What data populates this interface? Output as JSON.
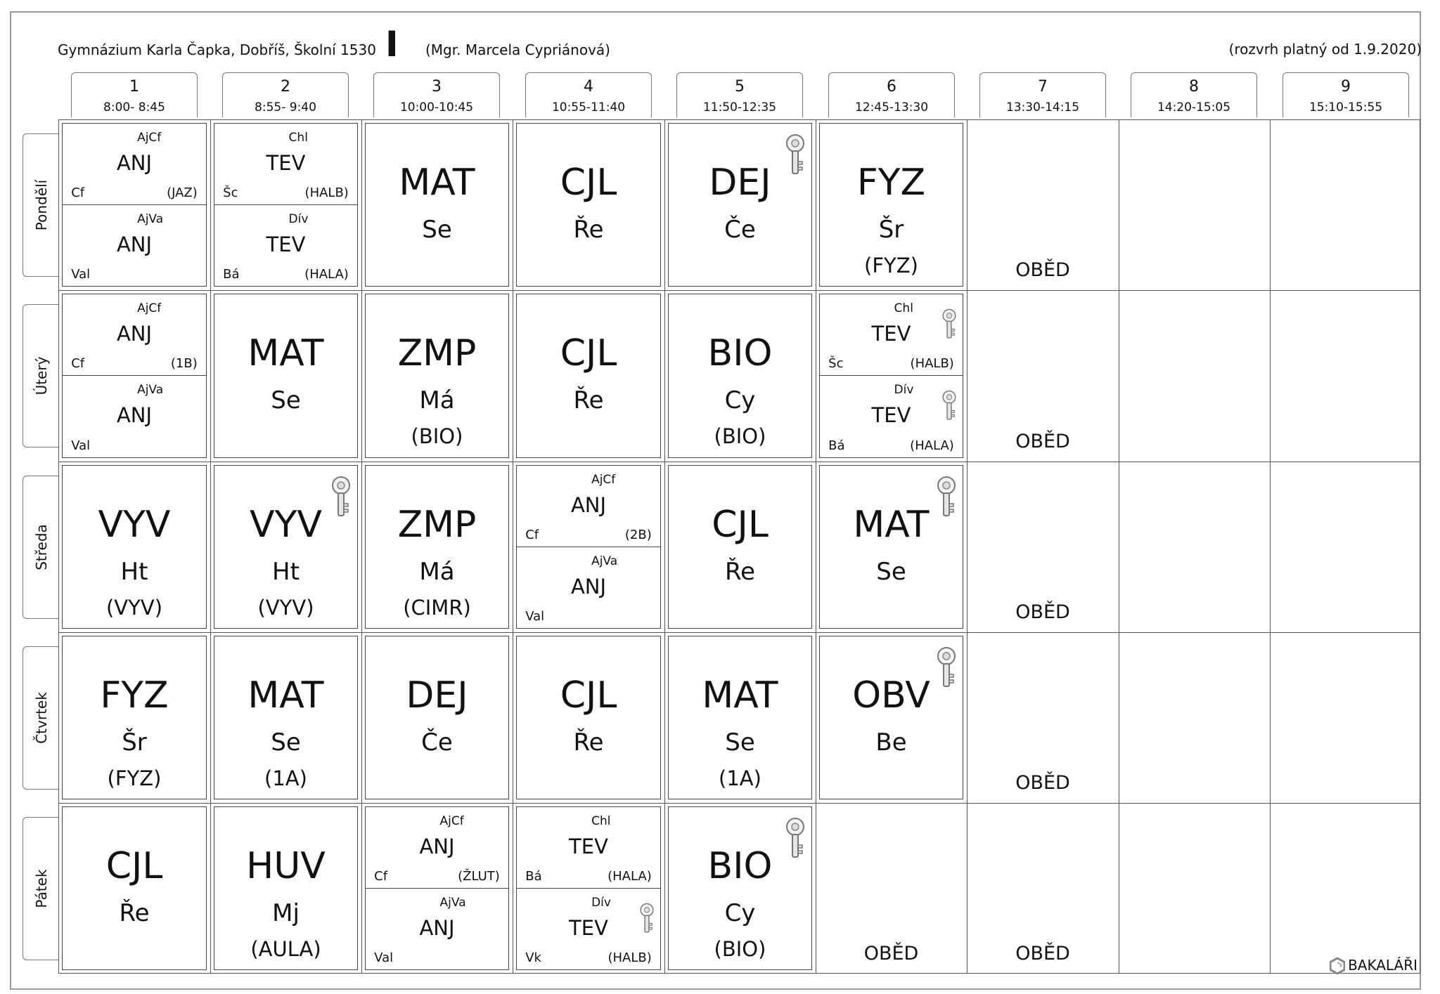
{
  "header": {
    "school": "Gymnázium Karla Čapka, Dobříš, Školní 1530",
    "class_label": "I",
    "teacher": "(Mgr. Marcela Cypriánová)",
    "validity": "(rozvrh platný od 1.9.2020)"
  },
  "periods": [
    {
      "num": "1",
      "time": "8:00- 8:45"
    },
    {
      "num": "2",
      "time": "8:55- 9:40"
    },
    {
      "num": "3",
      "time": "10:00-10:45"
    },
    {
      "num": "4",
      "time": "10:55-11:40"
    },
    {
      "num": "5",
      "time": "11:50-12:35"
    },
    {
      "num": "6",
      "time": "12:45-13:30"
    },
    {
      "num": "7",
      "time": "13:30-14:15"
    },
    {
      "num": "8",
      "time": "14:20-15:05"
    },
    {
      "num": "9",
      "time": "15:10-15:55"
    }
  ],
  "days": [
    "Pondělí",
    "Úterý",
    "Středa",
    "Čtvrtek",
    "Pátek"
  ],
  "lunch_label": "OBĚD",
  "brand": "BAKALÁŘI",
  "icons": {
    "key": "key-icon",
    "brand": "bakalari-logo-icon"
  },
  "schedule": [
    [
      {
        "type": "split",
        "top": {
          "group": "AjCf",
          "subject": "ANJ",
          "teacher": "Cf",
          "room": "(JAZ)"
        },
        "bottom": {
          "group": "AjVa",
          "subject": "ANJ",
          "teacher": "Val",
          "room": ""
        }
      },
      {
        "type": "split",
        "top": {
          "group": "Chl",
          "subject": "TEV",
          "teacher": "Šc",
          "room": "(HALB)"
        },
        "bottom": {
          "group": "Dív",
          "subject": "TEV",
          "teacher": "Bá",
          "room": "(HALA)"
        }
      },
      {
        "type": "full",
        "subject": "MAT",
        "teacher": "Se",
        "room": ""
      },
      {
        "type": "full",
        "subject": "CJL",
        "teacher": "Ře",
        "room": ""
      },
      {
        "type": "full",
        "subject": "DEJ",
        "teacher": "Če",
        "room": "",
        "key": true
      },
      {
        "type": "full",
        "subject": "FYZ",
        "teacher": "Šr",
        "room": "(FYZ)"
      }
    ],
    [
      {
        "type": "split",
        "top": {
          "group": "AjCf",
          "subject": "ANJ",
          "teacher": "Cf",
          "room": "(1B)"
        },
        "bottom": {
          "group": "AjVa",
          "subject": "ANJ",
          "teacher": "Val",
          "room": ""
        }
      },
      {
        "type": "full",
        "subject": "MAT",
        "teacher": "Se",
        "room": ""
      },
      {
        "type": "full",
        "subject": "ZMP",
        "teacher": "Má",
        "room": "(BIO)"
      },
      {
        "type": "full",
        "subject": "CJL",
        "teacher": "Ře",
        "room": ""
      },
      {
        "type": "full",
        "subject": "BIO",
        "teacher": "Cy",
        "room": "(BIO)"
      },
      {
        "type": "split",
        "top": {
          "group": "Chl",
          "subject": "TEV",
          "teacher": "Šc",
          "room": "(HALB)",
          "key": true
        },
        "bottom": {
          "group": "Dív",
          "subject": "TEV",
          "teacher": "Bá",
          "room": "(HALA)",
          "key": true
        }
      }
    ],
    [
      {
        "type": "full",
        "subject": "VYV",
        "teacher": "Ht",
        "room": "(VYV)"
      },
      {
        "type": "full",
        "subject": "VYV",
        "teacher": "Ht",
        "room": "(VYV)",
        "key": true
      },
      {
        "type": "full",
        "subject": "ZMP",
        "teacher": "Má",
        "room": "(CIMR)"
      },
      {
        "type": "split",
        "top": {
          "group": "AjCf",
          "subject": "ANJ",
          "teacher": "Cf",
          "room": "(2B)"
        },
        "bottom": {
          "group": "AjVa",
          "subject": "ANJ",
          "teacher": "Val",
          "room": ""
        }
      },
      {
        "type": "full",
        "subject": "CJL",
        "teacher": "Ře",
        "room": ""
      },
      {
        "type": "full",
        "subject": "MAT",
        "teacher": "Se",
        "room": "",
        "key": true
      }
    ],
    [
      {
        "type": "full",
        "subject": "FYZ",
        "teacher": "Šr",
        "room": "(FYZ)"
      },
      {
        "type": "full",
        "subject": "MAT",
        "teacher": "Se",
        "room": "(1A)"
      },
      {
        "type": "full",
        "subject": "DEJ",
        "teacher": "Če",
        "room": ""
      },
      {
        "type": "full",
        "subject": "CJL",
        "teacher": "Ře",
        "room": ""
      },
      {
        "type": "full",
        "subject": "MAT",
        "teacher": "Se",
        "room": "(1A)"
      },
      {
        "type": "full",
        "subject": "OBV",
        "teacher": "Be",
        "room": "",
        "key": true
      }
    ],
    [
      {
        "type": "full",
        "subject": "CJL",
        "teacher": "Ře",
        "room": ""
      },
      {
        "type": "full",
        "subject": "HUV",
        "teacher": "Mj",
        "room": "(AULA)"
      },
      {
        "type": "split",
        "top": {
          "group": "AjCf",
          "subject": "ANJ",
          "teacher": "Cf",
          "room": "(ŽLUT)"
        },
        "bottom": {
          "group": "AjVa",
          "subject": "ANJ",
          "teacher": "Val",
          "room": ""
        }
      },
      {
        "type": "split",
        "top": {
          "group": "Chl",
          "subject": "TEV",
          "teacher": "Bá",
          "room": "(HALA)"
        },
        "bottom": {
          "group": "Dív",
          "subject": "TEV",
          "teacher": "Vk",
          "room": "(HALB)",
          "key": true
        }
      },
      {
        "type": "full",
        "subject": "BIO",
        "teacher": "Cy",
        "room": "(BIO)",
        "key": true
      },
      {
        "type": "empty"
      }
    ]
  ]
}
